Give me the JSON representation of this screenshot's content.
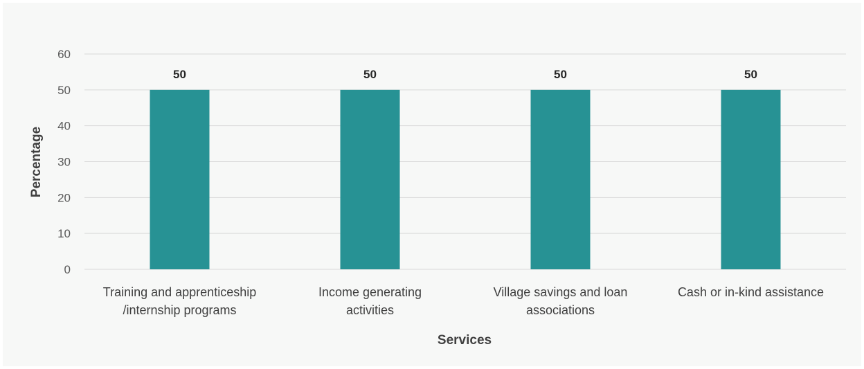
{
  "chart_data": {
    "type": "bar",
    "title": "",
    "xlabel": "Services",
    "ylabel": "Percentage",
    "categories": [
      [
        "Training and apprenticeship",
        "/internship programs"
      ],
      [
        "Income generating",
        "activities"
      ],
      [
        "Village savings and loan",
        "associations"
      ],
      [
        "Cash or in-kind assistance"
      ]
    ],
    "series": [
      {
        "values": [
          50,
          50,
          50,
          50
        ]
      }
    ],
    "ylim": [
      0,
      60
    ],
    "yticks": [
      0,
      10,
      20,
      30,
      40,
      50,
      60
    ],
    "grid": true,
    "legend": "none",
    "data_labels": true,
    "colors": {
      "bar": "#279294",
      "grid": "#d9d9d9",
      "background": "#f7f8f7"
    }
  }
}
